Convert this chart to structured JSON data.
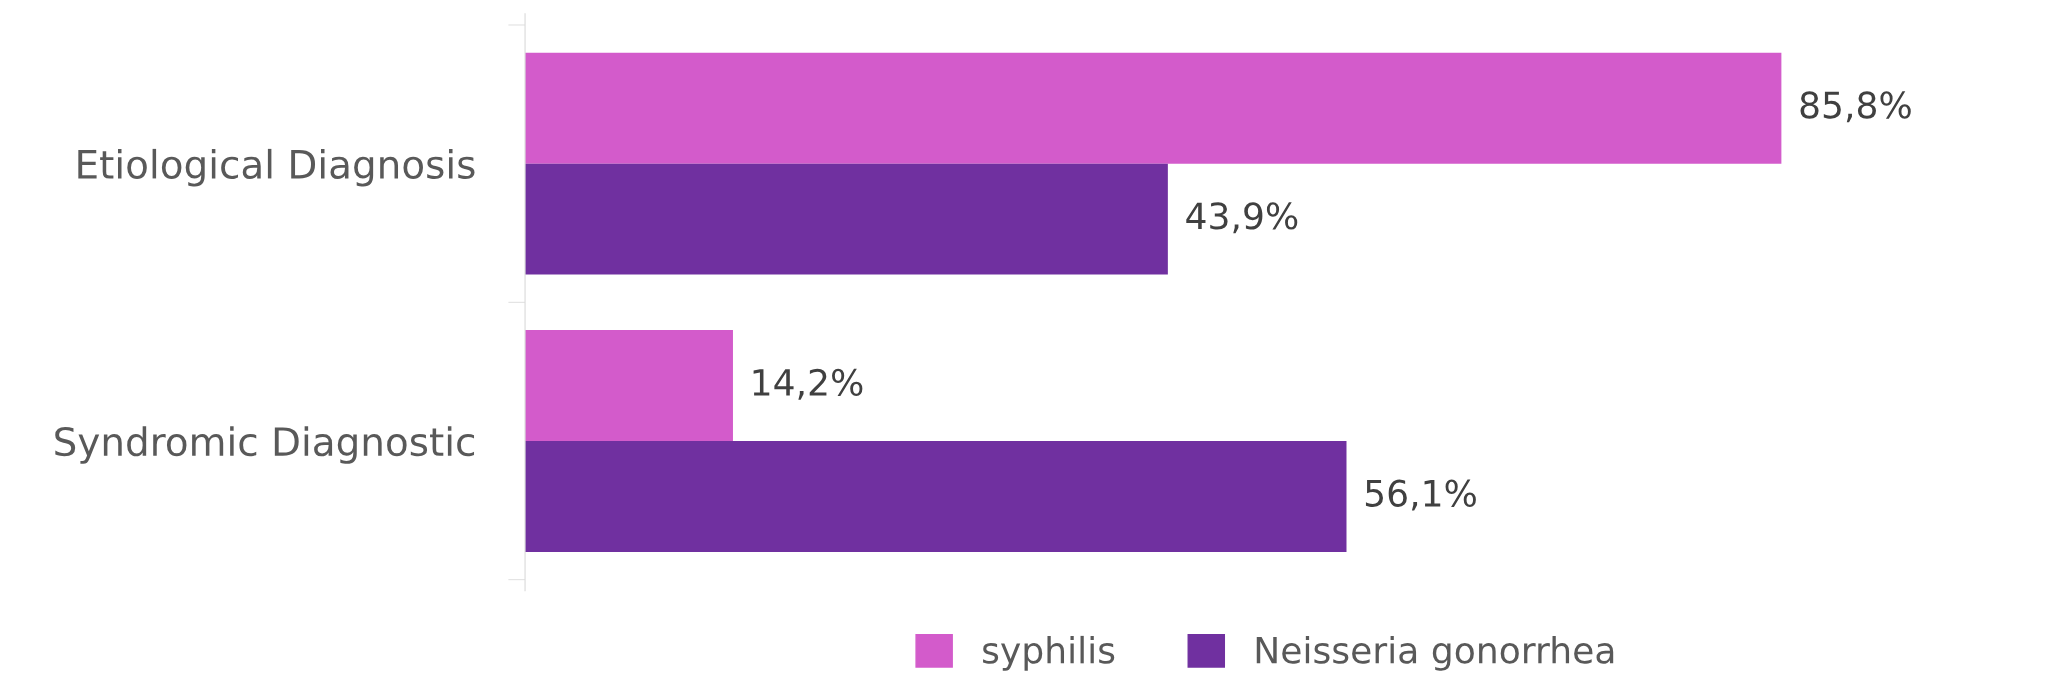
{
  "chart_data": {
    "type": "bar",
    "orientation": "horizontal",
    "categories": [
      "Etiological Diagnosis",
      "Syndromic Diagnostic"
    ],
    "series": [
      {
        "name": "syphilis",
        "color": "#d35bcb",
        "values": [
          85.8,
          14.2
        ],
        "value_labels": [
          "85,8%",
          "14,2%"
        ]
      },
      {
        "name": "Neisseria gonorrhea",
        "color": "#7030a0",
        "values": [
          43.9,
          56.1
        ],
        "value_labels": [
          "43,9%",
          "56,1%"
        ]
      }
    ],
    "legend": "bottom",
    "grid": false
  }
}
